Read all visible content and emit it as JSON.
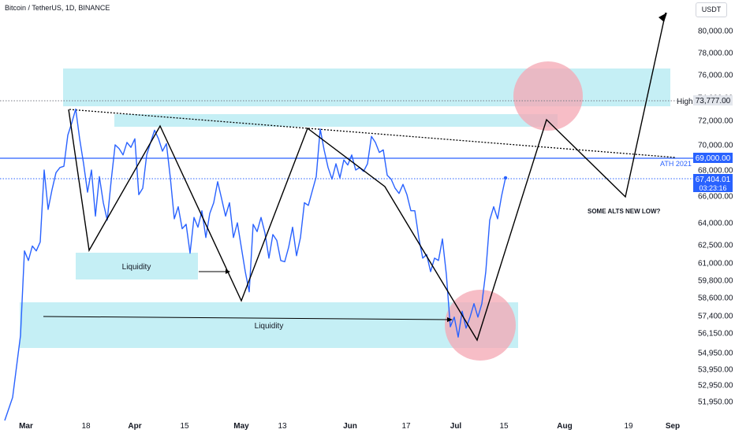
{
  "header": {
    "title": "Bitcoin / TetherUS, 1D, BINANCE",
    "currency": "USDT"
  },
  "colors": {
    "price_line": "#2962ff",
    "zone_fill": "#c5eff5",
    "circle_fill": "#f4a7b3",
    "projection": "#000000",
    "ath_line": "#2962ff"
  },
  "chart_data": {
    "type": "line",
    "y_axis": {
      "position": "right",
      "ticks": [
        51950,
        52950,
        53950,
        54950,
        56150,
        57400,
        58600,
        59800,
        61000,
        62500,
        64000,
        66000,
        68000,
        70000,
        72000,
        74000,
        76000,
        78000,
        80000
      ],
      "tick_labels": [
        "51,950.00",
        "52,950.00",
        "53,950.00",
        "54,950.00",
        "56,150.00",
        "57,400.00",
        "58,600.00",
        "59,800.00",
        "61,000.00",
        "62,500.00",
        "64,000.00",
        "66,000.00",
        "68,000.00",
        "70,000.00",
        "72,000.00",
        "74,000.00",
        "76,000.00",
        "78,000.00",
        "80,000.00"
      ]
    },
    "x_axis": {
      "tick_labels": [
        "Mar",
        "18",
        "Apr",
        "15",
        "May",
        "13",
        "Jun",
        "17",
        "Jul",
        "15",
        "Aug",
        "19",
        "Sep"
      ],
      "bold_labels": [
        "Mar",
        "Apr",
        "May",
        "Jun",
        "Jul",
        "Aug",
        "Sep"
      ]
    },
    "series": [
      {
        "values": [
          [
            0,
            50800
          ],
          [
            2,
            52200
          ],
          [
            4,
            56000
          ],
          [
            5,
            62000
          ],
          [
            6,
            61200
          ],
          [
            7,
            62400
          ],
          [
            8,
            62000
          ],
          [
            9,
            62700
          ],
          [
            10,
            68000
          ],
          [
            11,
            65000
          ],
          [
            12,
            66500
          ],
          [
            13,
            67800
          ],
          [
            14,
            68200
          ],
          [
            15,
            68300
          ],
          [
            16,
            70800
          ],
          [
            17,
            71800
          ],
          [
            18,
            73000
          ],
          [
            19,
            70500
          ],
          [
            20,
            68500
          ],
          [
            21,
            66300
          ],
          [
            22,
            68000
          ],
          [
            23,
            64500
          ],
          [
            24,
            67500
          ],
          [
            25,
            65500
          ],
          [
            26,
            64200
          ],
          [
            27,
            67200
          ],
          [
            28,
            70000
          ],
          [
            29,
            69700
          ],
          [
            30,
            69200
          ],
          [
            31,
            70200
          ],
          [
            32,
            69800
          ],
          [
            33,
            70500
          ],
          [
            34,
            66100
          ],
          [
            35,
            66600
          ],
          [
            36,
            69200
          ],
          [
            37,
            70200
          ],
          [
            38,
            71200
          ],
          [
            39,
            70500
          ],
          [
            40,
            69500
          ],
          [
            41,
            70100
          ],
          [
            42,
            67400
          ],
          [
            43,
            64300
          ],
          [
            44,
            65200
          ],
          [
            45,
            63600
          ],
          [
            46,
            63900
          ],
          [
            47,
            61800
          ],
          [
            48,
            64400
          ],
          [
            49,
            63700
          ],
          [
            50,
            64900
          ],
          [
            51,
            63000
          ],
          [
            52,
            64700
          ],
          [
            53,
            65500
          ],
          [
            54,
            67100
          ],
          [
            55,
            65800
          ],
          [
            56,
            64500
          ],
          [
            57,
            65500
          ],
          [
            58,
            63000
          ],
          [
            59,
            64000
          ],
          [
            60,
            62300
          ],
          [
            61,
            60400
          ],
          [
            62,
            59000
          ],
          [
            63,
            63900
          ],
          [
            64,
            63400
          ],
          [
            65,
            64400
          ],
          [
            66,
            63300
          ],
          [
            67,
            61400
          ],
          [
            68,
            63200
          ],
          [
            69,
            62800
          ],
          [
            70,
            61200
          ],
          [
            71,
            61100
          ],
          [
            72,
            62300
          ],
          [
            73,
            63700
          ],
          [
            74,
            61600
          ],
          [
            75,
            63000
          ],
          [
            76,
            65500
          ],
          [
            77,
            65300
          ],
          [
            78,
            66400
          ],
          [
            79,
            67500
          ],
          [
            80,
            71300
          ],
          [
            81,
            69600
          ],
          [
            82,
            68200
          ],
          [
            83,
            67300
          ],
          [
            84,
            68500
          ],
          [
            85,
            67400
          ],
          [
            86,
            68800
          ],
          [
            87,
            68400
          ],
          [
            88,
            69200
          ],
          [
            89,
            68000
          ],
          [
            90,
            68200
          ],
          [
            91,
            67900
          ],
          [
            92,
            68500
          ],
          [
            93,
            70700
          ],
          [
            94,
            70200
          ],
          [
            95,
            69400
          ],
          [
            96,
            69600
          ],
          [
            97,
            67600
          ],
          [
            98,
            67300
          ],
          [
            99,
            66600
          ],
          [
            100,
            66200
          ],
          [
            101,
            66900
          ],
          [
            102,
            66100
          ],
          [
            103,
            64900
          ],
          [
            104,
            64900
          ],
          [
            105,
            63000
          ],
          [
            106,
            61400
          ],
          [
            107,
            61700
          ],
          [
            108,
            60400
          ],
          [
            109,
            61400
          ],
          [
            110,
            61200
          ],
          [
            111,
            62900
          ],
          [
            112,
            60200
          ],
          [
            113,
            56600
          ],
          [
            114,
            57300
          ],
          [
            115,
            55900
          ],
          [
            116,
            57700
          ],
          [
            117,
            56500
          ],
          [
            118,
            57300
          ],
          [
            119,
            58200
          ],
          [
            120,
            57300
          ],
          [
            121,
            58200
          ],
          [
            122,
            60400
          ],
          [
            123,
            64200
          ],
          [
            124,
            65200
          ],
          [
            125,
            64300
          ],
          [
            126,
            66000
          ],
          [
            127,
            67400
          ]
        ]
      }
    ],
    "current_price": "67,404.01",
    "countdown": "03:23:16",
    "high_label": "High",
    "high_value": "73,777.00",
    "ath_label": "ATH 2021",
    "ath_value": "69,000.00",
    "annotations": {
      "liquidity_upper": "Liquidity",
      "liquidity_lower": "Liquidity",
      "alts_note": "SOME ALTS NEW LOW?"
    },
    "grid": false,
    "legend": "none"
  }
}
